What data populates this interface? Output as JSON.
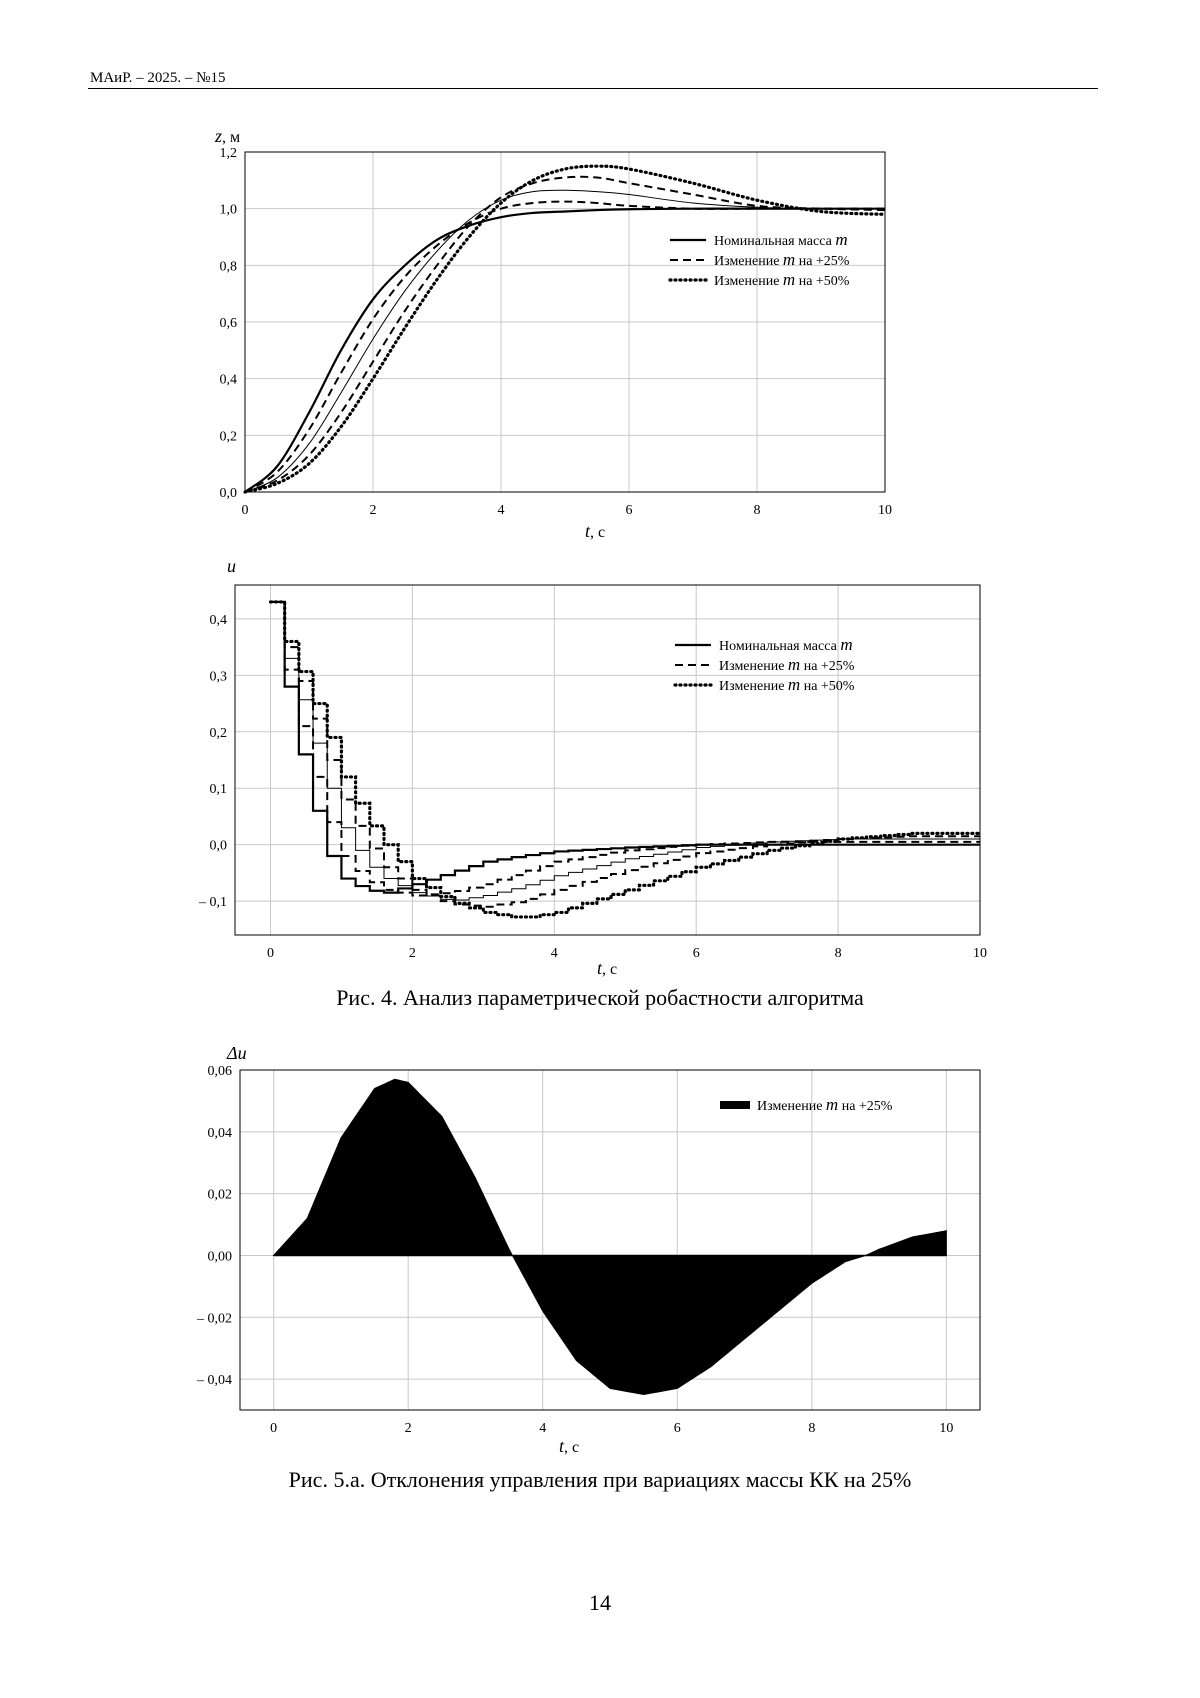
{
  "header": {
    "running_title": "МАиР. – 2025. – №15"
  },
  "figure4": {
    "caption": "Рис. 4. Анализ параметрической робастности алгоритма",
    "charts": [
      {
        "type": "line",
        "ylabel_var": "z",
        "ylabel_unit": ", м",
        "xlabel_var": "t",
        "xlabel_unit": ", с",
        "xlim": [
          0,
          10
        ],
        "ylim": [
          0,
          1.2
        ],
        "xticks": [
          0,
          2,
          4,
          6,
          8,
          10
        ],
        "yticks": [
          "0,0",
          "0,2",
          "0,4",
          "0,6",
          "0,8",
          "1,0",
          "1,2"
        ],
        "grid": true,
        "legend_placement": "right-middle",
        "legend": [
          {
            "text": "Номинальная масса ",
            "var": "m",
            "suffix": "",
            "style": "solid"
          },
          {
            "text": "Изменение ",
            "var": "m",
            "suffix": " на +25%",
            "style": "dashed"
          },
          {
            "text": "Изменение ",
            "var": "m",
            "suffix": " на +50%",
            "style": "dotted"
          }
        ],
        "series": [
          {
            "style": "solid",
            "thin": false,
            "x": [
              0,
              0.5,
              1,
              1.5,
              2,
              2.5,
              3,
              3.5,
              4,
              4.5,
              5,
              5.5,
              6,
              7,
              8,
              9,
              10
            ],
            "y": [
              0,
              0.09,
              0.28,
              0.5,
              0.68,
              0.8,
              0.89,
              0.94,
              0.97,
              0.985,
              0.99,
              0.995,
              0.998,
              1.0,
              1.0,
              1.0,
              1.0
            ]
          },
          {
            "style": "dashed",
            "thin": false,
            "x": [
              0,
              0.5,
              1,
              1.5,
              2,
              2.5,
              3,
              3.5,
              4,
              4.5,
              5,
              5.5,
              6,
              7,
              8,
              9,
              10
            ],
            "y": [
              0,
              0.07,
              0.22,
              0.42,
              0.61,
              0.76,
              0.87,
              0.95,
              1.0,
              1.02,
              1.025,
              1.02,
              1.01,
              1.0,
              1.0,
              1.0,
              1.0
            ]
          },
          {
            "style": "solid",
            "thin": true,
            "x": [
              0,
              0.5,
              1,
              1.5,
              2,
              2.5,
              3,
              3.5,
              4,
              4.5,
              5,
              5.5,
              6,
              7,
              8,
              9,
              10
            ],
            "y": [
              0,
              0.05,
              0.17,
              0.35,
              0.54,
              0.71,
              0.85,
              0.96,
              1.03,
              1.06,
              1.065,
              1.06,
              1.05,
              1.02,
              1.005,
              1.0,
              1.0
            ]
          },
          {
            "style": "dashed",
            "thin": false,
            "x": [
              0,
              0.5,
              1,
              1.5,
              2,
              2.5,
              3,
              3.5,
              4,
              4.5,
              5,
              5.5,
              6,
              7,
              8,
              9,
              10
            ],
            "y": [
              0,
              0.04,
              0.13,
              0.28,
              0.46,
              0.64,
              0.8,
              0.94,
              1.04,
              1.09,
              1.11,
              1.11,
              1.09,
              1.05,
              1.01,
              1.0,
              0.995
            ]
          },
          {
            "style": "dotted",
            "thin": false,
            "x": [
              0,
              0.5,
              1,
              1.5,
              2,
              2.5,
              3,
              3.5,
              4,
              4.5,
              5,
              5.5,
              6,
              7,
              8,
              9,
              10
            ],
            "y": [
              0,
              0.03,
              0.1,
              0.23,
              0.4,
              0.58,
              0.75,
              0.9,
              1.02,
              1.1,
              1.14,
              1.15,
              1.14,
              1.09,
              1.03,
              0.99,
              0.98
            ]
          }
        ]
      },
      {
        "type": "line",
        "ylabel_var": "u",
        "ylabel_unit": "",
        "xlabel_var": "t",
        "xlabel_unit": ", с",
        "xlim": [
          -0.5,
          10
        ],
        "ylim": [
          -0.16,
          0.46
        ],
        "xticks": [
          0,
          2,
          4,
          6,
          8,
          10
        ],
        "yticks": [
          {
            "v": 0.4,
            "t": "0,4"
          },
          {
            "v": 0.3,
            "t": "0,3"
          },
          {
            "v": 0.2,
            "t": "0,2"
          },
          {
            "v": 0.1,
            "t": "0,1"
          },
          {
            "v": 0.0,
            "t": "0,0"
          },
          {
            "v": -0.1,
            "t": "– 0,1"
          }
        ],
        "grid": true,
        "legend_placement": "right-upper",
        "legend": [
          {
            "text": "Номинальная масса ",
            "var": "m",
            "suffix": "",
            "style": "solid"
          },
          {
            "text": "Изменение ",
            "var": "m",
            "suffix": " на +25%",
            "style": "dashed"
          },
          {
            "text": "Изменение ",
            "var": "m",
            "suffix": " на +50%",
            "style": "dotted"
          }
        ],
        "series": [
          {
            "style": "solid",
            "thin": false,
            "x": [
              0,
              0.2,
              0.5,
              0.8,
              1.0,
              1.3,
              1.6,
              2.0,
              2.5,
              3,
              3.5,
              4,
              5,
              6,
              7,
              8,
              9,
              10
            ],
            "y": [
              0.43,
              0.28,
              0.1,
              -0.02,
              -0.06,
              -0.08,
              -0.085,
              -0.07,
              -0.05,
              -0.03,
              -0.02,
              -0.012,
              -0.005,
              0.0,
              0.0,
              0.0,
              0.0,
              0.0
            ]
          },
          {
            "style": "dashed",
            "thin": false,
            "x": [
              0,
              0.2,
              0.5,
              0.8,
              1.0,
              1.3,
              1.6,
              2.0,
              2.5,
              3,
              3.5,
              4,
              5,
              6,
              7,
              8,
              9,
              10
            ],
            "y": [
              0.43,
              0.31,
              0.16,
              0.04,
              -0.02,
              -0.06,
              -0.08,
              -0.09,
              -0.085,
              -0.07,
              -0.05,
              -0.03,
              -0.01,
              0.0,
              0.005,
              0.005,
              0.005,
              0.005
            ]
          },
          {
            "style": "solid",
            "thin": true,
            "x": [
              0,
              0.2,
              0.5,
              0.8,
              1.0,
              1.3,
              1.6,
              2.0,
              2.5,
              3,
              3.5,
              4,
              5,
              6,
              7,
              8,
              9,
              10
            ],
            "y": [
              0.43,
              0.33,
              0.22,
              0.1,
              0.03,
              -0.03,
              -0.06,
              -0.085,
              -0.1,
              -0.09,
              -0.075,
              -0.055,
              -0.025,
              -0.005,
              0.005,
              0.01,
              0.01,
              0.01
            ]
          },
          {
            "style": "dashed",
            "thin": false,
            "x": [
              0,
              0.2,
              0.5,
              0.8,
              1.0,
              1.3,
              1.6,
              2.0,
              2.5,
              3,
              3.5,
              4,
              5,
              6,
              7,
              8,
              9,
              10
            ],
            "y": [
              0.43,
              0.35,
              0.26,
              0.15,
              0.08,
              0.01,
              -0.04,
              -0.08,
              -0.105,
              -0.11,
              -0.1,
              -0.08,
              -0.045,
              -0.015,
              0.0,
              0.01,
              0.015,
              0.015
            ]
          },
          {
            "style": "dotted",
            "thin": false,
            "x": [
              0,
              0.2,
              0.5,
              0.8,
              1.0,
              1.3,
              1.6,
              2.0,
              2.5,
              3,
              3.5,
              4,
              5,
              6,
              7,
              8,
              9,
              10
            ],
            "y": [
              0.43,
              0.36,
              0.28,
              0.19,
              0.12,
              0.05,
              0.0,
              -0.06,
              -0.1,
              -0.12,
              -0.13,
              -0.12,
              -0.08,
              -0.04,
              -0.01,
              0.01,
              0.02,
              0.02
            ]
          }
        ]
      }
    ]
  },
  "figure5": {
    "caption": "Рис. 5.а. Отклонения управления при вариациях массы КК на 25%",
    "chart_data": {
      "type": "area",
      "ylabel_var": "Δu",
      "xlabel_var": "t",
      "xlabel_unit": ", с",
      "xlim": [
        -0.5,
        10.5
      ],
      "ylim": [
        -0.05,
        0.06
      ],
      "xticks": [
        0,
        2,
        4,
        6,
        8,
        10
      ],
      "yticks": [
        {
          "v": 0.06,
          "t": "0,06"
        },
        {
          "v": 0.04,
          "t": "0,04"
        },
        {
          "v": 0.02,
          "t": "0,02"
        },
        {
          "v": 0.0,
          "t": "0,00"
        },
        {
          "v": -0.02,
          "t": "– 0,02"
        },
        {
          "v": -0.04,
          "t": "– 0,04"
        }
      ],
      "grid": true,
      "legend_placement": "top-right",
      "legend": [
        {
          "text": "Изменение ",
          "var": "m",
          "suffix": " на +25%",
          "style": "filled"
        }
      ],
      "series": [
        {
          "x": [
            0,
            0.5,
            1.0,
            1.5,
            1.8,
            2.0,
            2.5,
            3.0,
            3.5,
            4.0,
            4.5,
            5.0,
            5.5,
            6.0,
            6.5,
            7.0,
            7.5,
            8.0,
            8.5,
            8.8,
            9.0,
            9.5,
            10.0
          ],
          "y": [
            0,
            0.012,
            0.038,
            0.054,
            0.057,
            0.056,
            0.045,
            0.025,
            0.002,
            -0.018,
            -0.034,
            -0.043,
            -0.045,
            -0.043,
            -0.036,
            -0.027,
            -0.018,
            -0.009,
            -0.002,
            0.0,
            0.002,
            0.006,
            0.008
          ]
        }
      ]
    }
  },
  "page_number": "14"
}
